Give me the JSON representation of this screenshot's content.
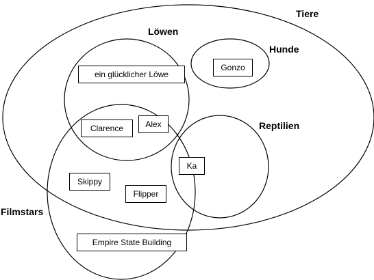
{
  "diagram": {
    "type": "euler-diagram",
    "sets": {
      "tiere": "Tiere",
      "loewen": "Löwen",
      "hunde": "Hunde",
      "reptilien": "Reptilien",
      "filmstars": "Filmstars"
    },
    "members": {
      "gluecklicher_loewe": "ein glücklicher Löwe",
      "gonzo": "Gonzo",
      "clarence": "Clarence",
      "alex": "Alex",
      "ka": "Ka",
      "skippy": "Skippy",
      "flipper": "Flipper",
      "empire_state_building": "Empire State Building"
    },
    "membership": {
      "gluecklicher_loewe": [
        "Tiere",
        "Löwen"
      ],
      "gonzo": [
        "Tiere",
        "Hunde"
      ],
      "clarence": [
        "Tiere",
        "Löwen",
        "Filmstars"
      ],
      "alex": [
        "Tiere",
        "Löwen",
        "Filmstars"
      ],
      "ka": [
        "Tiere",
        "Reptilien",
        "Filmstars"
      ],
      "skippy": [
        "Tiere",
        "Filmstars"
      ],
      "flipper": [
        "Tiere",
        "Filmstars"
      ],
      "empire_state_building": [
        "Filmstars"
      ]
    }
  }
}
